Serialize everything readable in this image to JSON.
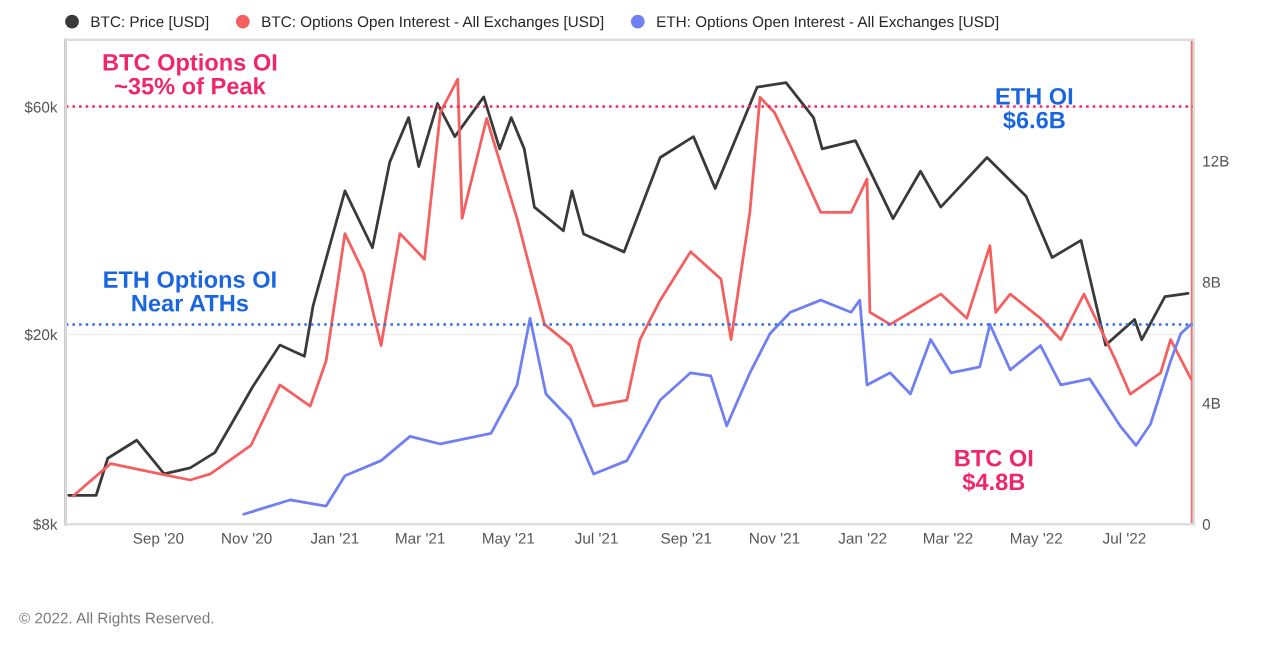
{
  "chart_data": {
    "type": "line",
    "series": [
      {
        "name": "BTC: Price [USD]",
        "color": "#3a3a3a",
        "axis": "y",
        "x": [
          "2020-07-01",
          "2020-07-20",
          "2020-07-28",
          "2020-08-17",
          "2020-09-05",
          "2020-09-23",
          "2020-10-10",
          "2020-10-21",
          "2020-11-05",
          "2020-11-24",
          "2020-12-11",
          "2020-12-17",
          "2021-01-08",
          "2021-01-27",
          "2021-02-08",
          "2021-02-21",
          "2021-02-28",
          "2021-03-13",
          "2021-03-25",
          "2021-04-14",
          "2021-04-25",
          "2021-05-03",
          "2021-05-12",
          "2021-05-19",
          "2021-06-08",
          "2021-06-14",
          "2021-06-22",
          "2021-07-20",
          "2021-08-14",
          "2021-09-06",
          "2021-09-21",
          "2021-10-20",
          "2021-11-09",
          "2021-11-28",
          "2021-12-04",
          "2021-12-27",
          "2022-01-22",
          "2022-02-10",
          "2022-02-24",
          "2022-03-28",
          "2022-04-24",
          "2022-05-12",
          "2022-06-01",
          "2022-06-18",
          "2022-07-08",
          "2022-07-13",
          "2022-07-29",
          "2022-08-14"
        ],
        "values": [
          9200,
          9200,
          11000,
          12000,
          10200,
          10500,
          11300,
          12900,
          15500,
          19000,
          18000,
          23000,
          40000,
          30400,
          46000,
          57000,
          45000,
          61000,
          52000,
          63000,
          49000,
          57000,
          49000,
          37000,
          33000,
          40000,
          32500,
          29800,
          47000,
          52000,
          40500,
          66000,
          67500,
          57000,
          49000,
          51000,
          35000,
          44000,
          37000,
          47000,
          39000,
          29000,
          31500,
          19000,
          21500,
          19500,
          24000,
          24400
        ]
      },
      {
        "name": "BTC: Options Open Interest - All Exchanges [USD]",
        "color": "#f4605f",
        "axis": "y2",
        "x": [
          "2020-07-04",
          "2020-07-30",
          "2020-09-02",
          "2020-09-23",
          "2020-10-07",
          "2020-11-04",
          "2020-11-24",
          "2020-12-15",
          "2020-12-26",
          "2021-01-08",
          "2021-01-21",
          "2021-02-02",
          "2021-02-15",
          "2021-03-04",
          "2021-03-15",
          "2021-03-27",
          "2021-03-30",
          "2021-04-16",
          "2021-05-07",
          "2021-05-26",
          "2021-06-13",
          "2021-06-29",
          "2021-07-22",
          "2021-07-31",
          "2021-08-14",
          "2021-09-04",
          "2021-09-25",
          "2021-10-02",
          "2021-10-15",
          "2021-10-22",
          "2021-11-01",
          "2021-11-12",
          "2021-12-03",
          "2021-12-24",
          "2022-01-04",
          "2022-01-06",
          "2022-01-20",
          "2022-02-10",
          "2022-02-24",
          "2022-03-14",
          "2022-03-30",
          "2022-04-03",
          "2022-04-13",
          "2022-05-04",
          "2022-05-18",
          "2022-06-03",
          "2022-06-25",
          "2022-07-05",
          "2022-07-26",
          "2022-08-02",
          "2022-08-16"
        ],
        "values": [
          0.93,
          2.0,
          1.66,
          1.46,
          1.66,
          2.6,
          4.6,
          3.9,
          5.4,
          9.6,
          8.3,
          5.9,
          9.6,
          8.75,
          13.6,
          14.7,
          10.1,
          13.4,
          10.1,
          6.6,
          5.9,
          3.9,
          4.1,
          6.1,
          7.4,
          9.0,
          8.1,
          6.1,
          10.3,
          14.1,
          13.6,
          12.5,
          10.3,
          10.3,
          11.4,
          7.0,
          6.6,
          7.2,
          7.6,
          6.8,
          9.2,
          7.0,
          7.6,
          6.8,
          6.1,
          7.6,
          5.4,
          4.3,
          5.0,
          6.1,
          4.8
        ]
      },
      {
        "name": "ETH: Options Open Interest - All Exchanges [USD]",
        "color": "#7080f2",
        "axis": "y2",
        "x": [
          "2020-10-30",
          "2020-12-01",
          "2020-12-26",
          "2021-01-08",
          "2021-02-02",
          "2021-02-22",
          "2021-03-15",
          "2021-04-19",
          "2021-05-07",
          "2021-05-16",
          "2021-05-27",
          "2021-06-13",
          "2021-06-29",
          "2021-07-22",
          "2021-08-14",
          "2021-09-04",
          "2021-09-18",
          "2021-09-29",
          "2021-10-15",
          "2021-10-29",
          "2021-11-12",
          "2021-12-03",
          "2021-12-24",
          "2021-12-30",
          "2022-01-04",
          "2022-01-20",
          "2022-02-03",
          "2022-02-17",
          "2022-03-03",
          "2022-03-23",
          "2022-03-30",
          "2022-04-13",
          "2022-05-04",
          "2022-05-18",
          "2022-06-07",
          "2022-06-28",
          "2022-07-09",
          "2022-07-19",
          "2022-08-02",
          "2022-08-09",
          "2022-08-16"
        ],
        "values": [
          0.33,
          0.8,
          0.6,
          1.6,
          2.1,
          2.9,
          2.65,
          3.0,
          4.6,
          6.8,
          4.3,
          3.45,
          1.66,
          2.1,
          4.1,
          5.0,
          4.9,
          3.25,
          5.0,
          6.3,
          7.0,
          7.4,
          7.0,
          7.4,
          4.6,
          5.0,
          4.3,
          6.1,
          5.0,
          5.2,
          6.6,
          5.1,
          5.9,
          4.6,
          4.8,
          3.25,
          2.6,
          3.3,
          5.4,
          6.3,
          6.6
        ]
      }
    ],
    "log": "y",
    "xlim": [
      "2020-06-29",
      "2022-08-18"
    ],
    "xticks": [
      {
        "value": "2020-09-01",
        "label": "Sep '20"
      },
      {
        "value": "2020-11-01",
        "label": "Nov '20"
      },
      {
        "value": "2021-01-01",
        "label": "Jan '21"
      },
      {
        "value": "2021-03-01",
        "label": "Mar '21"
      },
      {
        "value": "2021-05-01",
        "label": "May '21"
      },
      {
        "value": "2021-07-01",
        "label": "Jul '21"
      },
      {
        "value": "2021-09-01",
        "label": "Sep '21"
      },
      {
        "value": "2021-11-01",
        "label": "Nov '21"
      },
      {
        "value": "2022-01-01",
        "label": "Jan '22"
      },
      {
        "value": "2022-03-01",
        "label": "Mar '22"
      },
      {
        "value": "2022-05-01",
        "label": "May '22"
      },
      {
        "value": "2022-07-01",
        "label": "Jul '22"
      }
    ],
    "ylim": [
      8000,
      83000
    ],
    "yticks": [
      {
        "value": 8000,
        "label": "$8k"
      },
      {
        "value": 20000,
        "label": "$20k"
      },
      {
        "value": 60000,
        "label": "$60k"
      }
    ],
    "y2lim": [
      0,
      16
    ],
    "y2ticks": [
      0,
      {
        "value": 4,
        "label": "4B"
      },
      {
        "value": 8,
        "label": "8B"
      },
      {
        "value": 12,
        "label": "12B"
      }
    ],
    "grid": "y",
    "legend": "top left",
    "marker": "none",
    "line_style": "solid",
    "ref_lines": [
      {
        "axis": "y2",
        "value": 13.8,
        "color": "#f0266b",
        "line_style": "dotted"
      },
      {
        "axis": "y2",
        "value": 6.6,
        "color": "#2e6fe0",
        "line_style": "dotted"
      },
      {
        "axis": "x",
        "value": "2022-08-17",
        "color": "#f07070",
        "line_style": "solid"
      }
    ],
    "annotations": [
      "BTC Options OI\n~35% of Peak",
      "ETH Options OI\nNear ATHs",
      "ETH OI\n$6.6B",
      "BTC OI\n$4.8B",
      "© 2022. All Rights Reserved."
    ]
  }
}
